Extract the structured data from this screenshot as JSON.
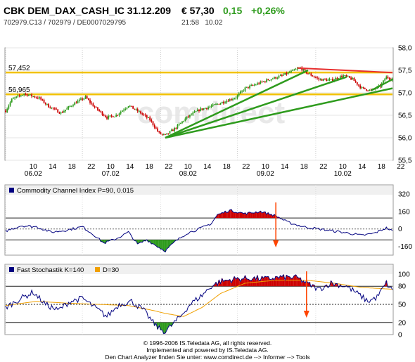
{
  "header": {
    "symbol_title": "CBK DEM_DAX_CASH_IC 31.12.209",
    "price": "€ 57,30",
    "change": "0,15",
    "change_pct": "+0,26%",
    "ids": "702979.C13  /  702979  /  DE0007029795",
    "time": "21:58",
    "date": "10.02"
  },
  "footer": {
    "line1": "© 1996-2006 IS.Teledata AG, all rights reserved.",
    "line2": "Implemented and powered by IS.Teledata AG.",
    "line3": "Den Chart Analyzer finden Sie unter: www.comdirect.de --> Informer --> Tools"
  },
  "watermark": "comdirect",
  "colors": {
    "up": "#2e9b1d",
    "down": "#cc0000",
    "hline": "#f2c200",
    "trend": "#2e9b1d",
    "resistance": "#e83030",
    "cci": "#000080",
    "stochK": "#000080",
    "stochD": "#f0a000",
    "arrow": "#ff4400"
  },
  "chart_data": [
    {
      "type": "candlestick",
      "title": "",
      "y_ticks": [
        "58,0",
        "57,5",
        "57,0",
        "56,5",
        "56,0",
        "55,5"
      ],
      "ylim": [
        55.5,
        58.0
      ],
      "x_ticks": [
        "10",
        "14",
        "18",
        "22",
        "10",
        "14",
        "18",
        "22",
        "10",
        "14",
        "18",
        "22",
        "10",
        "14",
        "18",
        "22",
        "10",
        "14",
        "18",
        "22"
      ],
      "day_labels": [
        "06.02",
        "07.02",
        "08.02",
        "09.02",
        "10.02"
      ],
      "hlines": [
        {
          "label": "57,452",
          "value": 57.452
        },
        {
          "label": "56,965",
          "value": 56.965
        }
      ],
      "anchors": [
        {
          "t": 0,
          "v": 56.6
        },
        {
          "t": 4,
          "v": 56.85
        },
        {
          "t": 12,
          "v": 56.98
        },
        {
          "t": 22,
          "v": 56.88
        },
        {
          "t": 28,
          "v": 56.7
        },
        {
          "t": 36,
          "v": 56.55
        },
        {
          "t": 44,
          "v": 56.75
        },
        {
          "t": 52,
          "v": 56.9
        },
        {
          "t": 58,
          "v": 56.68
        },
        {
          "t": 66,
          "v": 56.45
        },
        {
          "t": 72,
          "v": 56.5
        },
        {
          "t": 80,
          "v": 56.72
        },
        {
          "t": 88,
          "v": 56.55
        },
        {
          "t": 94,
          "v": 56.4
        },
        {
          "t": 100,
          "v": 56.1
        },
        {
          "t": 104,
          "v": 56.05
        },
        {
          "t": 110,
          "v": 56.2
        },
        {
          "t": 118,
          "v": 56.45
        },
        {
          "t": 126,
          "v": 56.62
        },
        {
          "t": 134,
          "v": 56.7
        },
        {
          "t": 142,
          "v": 56.8
        },
        {
          "t": 150,
          "v": 56.9
        },
        {
          "t": 156,
          "v": 57.1
        },
        {
          "t": 164,
          "v": 57.2
        },
        {
          "t": 172,
          "v": 57.3
        },
        {
          "t": 180,
          "v": 57.38
        },
        {
          "t": 188,
          "v": 57.5
        },
        {
          "t": 192,
          "v": 57.55
        },
        {
          "t": 196,
          "v": 57.45
        },
        {
          "t": 204,
          "v": 57.3
        },
        {
          "t": 212,
          "v": 57.28
        },
        {
          "t": 220,
          "v": 57.38
        },
        {
          "t": 226,
          "v": 57.3
        },
        {
          "t": 232,
          "v": 57.1
        },
        {
          "t": 238,
          "v": 57.05
        },
        {
          "t": 244,
          "v": 57.15
        },
        {
          "t": 248,
          "v": 57.35
        },
        {
          "t": 252,
          "v": 57.3
        }
      ],
      "trend_lines": [
        {
          "from": [
            104,
            56.0
          ],
          "to": [
            197,
            57.5
          ]
        },
        {
          "from": [
            104,
            56.0
          ],
          "to": [
            222,
            57.35
          ]
        },
        {
          "from": [
            104,
            56.0
          ],
          "to": [
            252,
            57.1
          ]
        },
        {
          "from": [
            238,
            57.05
          ],
          "to": [
            252,
            57.3
          ]
        }
      ],
      "resistance_line": {
        "from": [
          190,
          57.55
        ],
        "to": [
          252,
          57.45
        ]
      }
    },
    {
      "type": "line",
      "title": "Commodity Channel Index P=90, 0.015",
      "y_ticks": [
        "320",
        "160",
        "0",
        "-160"
      ],
      "ylim": [
        -240,
        320
      ],
      "hlines": [
        100,
        0,
        -100
      ],
      "arrow_at": 176,
      "series": [
        {
          "name": "Commodity Channel Index P=90, 0.015",
          "anchors": [
            {
              "t": 0,
              "v": -20
            },
            {
              "t": 10,
              "v": 30
            },
            {
              "t": 20,
              "v": 20
            },
            {
              "t": 30,
              "v": -30
            },
            {
              "t": 40,
              "v": -10
            },
            {
              "t": 50,
              "v": 20
            },
            {
              "t": 58,
              "v": -60
            },
            {
              "t": 64,
              "v": -130
            },
            {
              "t": 72,
              "v": -90
            },
            {
              "t": 80,
              "v": -30
            },
            {
              "t": 86,
              "v": -140
            },
            {
              "t": 92,
              "v": -100
            },
            {
              "t": 100,
              "v": -170
            },
            {
              "t": 104,
              "v": -200
            },
            {
              "t": 110,
              "v": -120
            },
            {
              "t": 118,
              "v": -40
            },
            {
              "t": 126,
              "v": 0
            },
            {
              "t": 134,
              "v": 50
            },
            {
              "t": 138,
              "v": 130
            },
            {
              "t": 146,
              "v": 170
            },
            {
              "t": 156,
              "v": 140
            },
            {
              "t": 166,
              "v": 160
            },
            {
              "t": 176,
              "v": 120
            },
            {
              "t": 184,
              "v": 60
            },
            {
              "t": 194,
              "v": 20
            },
            {
              "t": 204,
              "v": 0
            },
            {
              "t": 214,
              "v": -20
            },
            {
              "t": 224,
              "v": -40
            },
            {
              "t": 232,
              "v": -60
            },
            {
              "t": 240,
              "v": -40
            },
            {
              "t": 248,
              "v": 10
            },
            {
              "t": 252,
              "v": -20
            }
          ]
        }
      ]
    },
    {
      "type": "line",
      "title": "Fast Stochastik",
      "y_ticks": [
        "100",
        "80",
        "50",
        "20",
        "0"
      ],
      "ylim": [
        0,
        100
      ],
      "hlines": [
        80,
        50,
        20
      ],
      "arrow_at": 196,
      "series": [
        {
          "name": "Fast Stochastik K=140",
          "anchors": [
            {
              "t": 0,
              "v": 45
            },
            {
              "t": 10,
              "v": 60
            },
            {
              "t": 18,
              "v": 70
            },
            {
              "t": 26,
              "v": 50
            },
            {
              "t": 34,
              "v": 40
            },
            {
              "t": 42,
              "v": 55
            },
            {
              "t": 50,
              "v": 60
            },
            {
              "t": 58,
              "v": 45
            },
            {
              "t": 66,
              "v": 30
            },
            {
              "t": 74,
              "v": 50
            },
            {
              "t": 82,
              "v": 55
            },
            {
              "t": 90,
              "v": 40
            },
            {
              "t": 96,
              "v": 20
            },
            {
              "t": 100,
              "v": 10
            },
            {
              "t": 104,
              "v": 5
            },
            {
              "t": 108,
              "v": 15
            },
            {
              "t": 114,
              "v": 30
            },
            {
              "t": 120,
              "v": 50
            },
            {
              "t": 128,
              "v": 65
            },
            {
              "t": 134,
              "v": 80
            },
            {
              "t": 140,
              "v": 88
            },
            {
              "t": 150,
              "v": 92
            },
            {
              "t": 160,
              "v": 93
            },
            {
              "t": 170,
              "v": 92
            },
            {
              "t": 180,
              "v": 95
            },
            {
              "t": 190,
              "v": 94
            },
            {
              "t": 196,
              "v": 85
            },
            {
              "t": 204,
              "v": 75
            },
            {
              "t": 212,
              "v": 85
            },
            {
              "t": 222,
              "v": 80
            },
            {
              "t": 228,
              "v": 70
            },
            {
              "t": 236,
              "v": 55
            },
            {
              "t": 242,
              "v": 62
            },
            {
              "t": 248,
              "v": 85
            },
            {
              "t": 252,
              "v": 72
            }
          ]
        },
        {
          "name": "D=30",
          "anchors": [
            {
              "t": 0,
              "v": 48
            },
            {
              "t": 20,
              "v": 55
            },
            {
              "t": 40,
              "v": 52
            },
            {
              "t": 60,
              "v": 50
            },
            {
              "t": 80,
              "v": 48
            },
            {
              "t": 96,
              "v": 40
            },
            {
              "t": 104,
              "v": 35
            },
            {
              "t": 116,
              "v": 30
            },
            {
              "t": 128,
              "v": 45
            },
            {
              "t": 140,
              "v": 68
            },
            {
              "t": 156,
              "v": 85
            },
            {
              "t": 176,
              "v": 90
            },
            {
              "t": 196,
              "v": 90
            },
            {
              "t": 214,
              "v": 85
            },
            {
              "t": 232,
              "v": 78
            },
            {
              "t": 252,
              "v": 75
            }
          ]
        }
      ]
    }
  ]
}
